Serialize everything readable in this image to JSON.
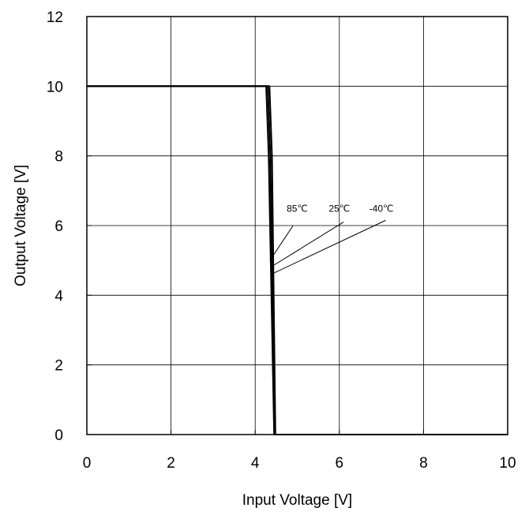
{
  "chart_data": {
    "type": "line",
    "title": "",
    "xlabel": "Input Voltage [V]",
    "ylabel": "Output Voltage [V]",
    "xlim": [
      0,
      10
    ],
    "ylim": [
      0,
      12
    ],
    "x_ticks": [
      0,
      2,
      4,
      6,
      8,
      10
    ],
    "y_ticks": [
      0,
      2,
      4,
      6,
      8,
      10,
      12
    ],
    "x_tick_labels": [
      "0",
      "2",
      "4",
      "6",
      "8",
      "10"
    ],
    "y_tick_labels": [
      "0",
      "2",
      "4",
      "6",
      "8",
      "10",
      "12"
    ],
    "grid": true,
    "legend": "none",
    "series": [
      {
        "name": "85℃",
        "x": [
          0,
          4.26,
          4.32,
          4.45,
          10
        ],
        "y": [
          10,
          10,
          8,
          0,
          0
        ]
      },
      {
        "name": "25℃",
        "x": [
          0,
          4.3,
          4.36,
          4.46,
          10
        ],
        "y": [
          10,
          10,
          8,
          0,
          0
        ]
      },
      {
        "name": "-40℃",
        "x": [
          0,
          4.34,
          4.4,
          4.48,
          10
        ],
        "y": [
          10,
          10,
          8,
          0,
          0
        ]
      }
    ],
    "annotations": [
      {
        "text": "85℃",
        "label_at": [
          5.0,
          6.4
        ],
        "line_from": [
          4.9,
          6.0
        ],
        "line_to": [
          4.35,
          5.0
        ]
      },
      {
        "text": "25℃",
        "label_at": [
          6.0,
          6.4
        ],
        "line_from": [
          6.1,
          6.1
        ],
        "line_to": [
          4.36,
          4.8
        ]
      },
      {
        "text": "-40℃",
        "label_at": [
          7.0,
          6.4
        ],
        "line_from": [
          7.1,
          6.15
        ],
        "line_to": [
          4.38,
          4.6
        ]
      }
    ],
    "colors": {
      "line": "#000000",
      "grid": "#000000",
      "background": "#ffffff"
    }
  }
}
